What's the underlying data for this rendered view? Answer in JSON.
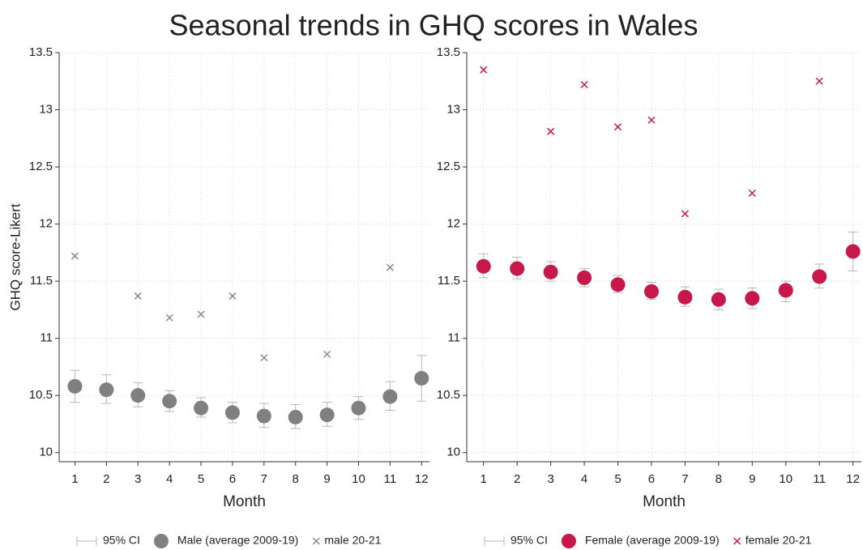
{
  "title": "Seasonal trends in GHQ scores in Wales",
  "chart_data": [
    {
      "type": "scatter",
      "xlabel": "Month",
      "ylabel": "GHQ score-Likert",
      "x": [
        1,
        2,
        3,
        4,
        5,
        6,
        7,
        8,
        9,
        10,
        11,
        12
      ],
      "xlim": [
        0.5,
        12.25
      ],
      "xticks": [
        1,
        2,
        3,
        4,
        5,
        6,
        7,
        8,
        9,
        10,
        11,
        12
      ],
      "ylim": [
        9.92,
        13.5
      ],
      "yticks": [
        10,
        10.5,
        11,
        11.5,
        12,
        12.5,
        13,
        13.5
      ],
      "grid": true,
      "legend": "bottom",
      "series": [
        {
          "name": "95% CI",
          "color": "#b8b8b8",
          "lower": [
            10.44,
            10.43,
            10.4,
            10.36,
            10.31,
            10.26,
            10.22,
            10.21,
            10.23,
            10.29,
            10.37,
            10.45
          ],
          "upper": [
            10.72,
            10.68,
            10.61,
            10.54,
            10.48,
            10.44,
            10.43,
            10.42,
            10.44,
            10.49,
            10.62,
            10.85
          ]
        },
        {
          "name": "Male (average 2009-19)",
          "color": "#808080",
          "values": [
            10.58,
            10.55,
            10.5,
            10.45,
            10.39,
            10.35,
            10.32,
            10.31,
            10.33,
            10.39,
            10.49,
            10.65
          ]
        },
        {
          "name": "male 20-21",
          "color": "#8a8a8a",
          "values": [
            11.72,
            null,
            11.37,
            11.18,
            11.21,
            11.37,
            10.83,
            null,
            10.86,
            null,
            11.62,
            null
          ]
        }
      ]
    },
    {
      "type": "scatter",
      "xlabel": "Month",
      "x": [
        1,
        2,
        3,
        4,
        5,
        6,
        7,
        8,
        9,
        10,
        11,
        12
      ],
      "xlim": [
        0.5,
        12.25
      ],
      "xticks": [
        1,
        2,
        3,
        4,
        5,
        6,
        7,
        8,
        9,
        10,
        11,
        12
      ],
      "ylim": [
        9.92,
        13.5
      ],
      "yticks": [
        10,
        10.5,
        11,
        11.5,
        12,
        12.5,
        13,
        13.5
      ],
      "grid": true,
      "legend": "bottom",
      "series": [
        {
          "name": "95% CI",
          "color": "#b8b8b8",
          "lower": [
            11.53,
            11.52,
            11.5,
            11.45,
            11.4,
            11.34,
            11.28,
            11.25,
            11.26,
            11.32,
            11.44,
            11.59
          ],
          "upper": [
            11.74,
            11.71,
            11.67,
            11.61,
            11.55,
            11.49,
            11.45,
            11.43,
            11.44,
            11.5,
            11.65,
            11.93
          ]
        },
        {
          "name": "Female (average 2009-19)",
          "color": "#c8174a",
          "values": [
            11.63,
            11.61,
            11.58,
            11.53,
            11.47,
            11.41,
            11.36,
            11.34,
            11.35,
            11.42,
            11.54,
            11.76
          ]
        },
        {
          "name": "female 20-21",
          "color": "#c8174a",
          "values": [
            13.35,
            null,
            12.81,
            13.22,
            12.85,
            12.91,
            12.09,
            null,
            12.27,
            null,
            13.25,
            null
          ]
        }
      ]
    }
  ]
}
